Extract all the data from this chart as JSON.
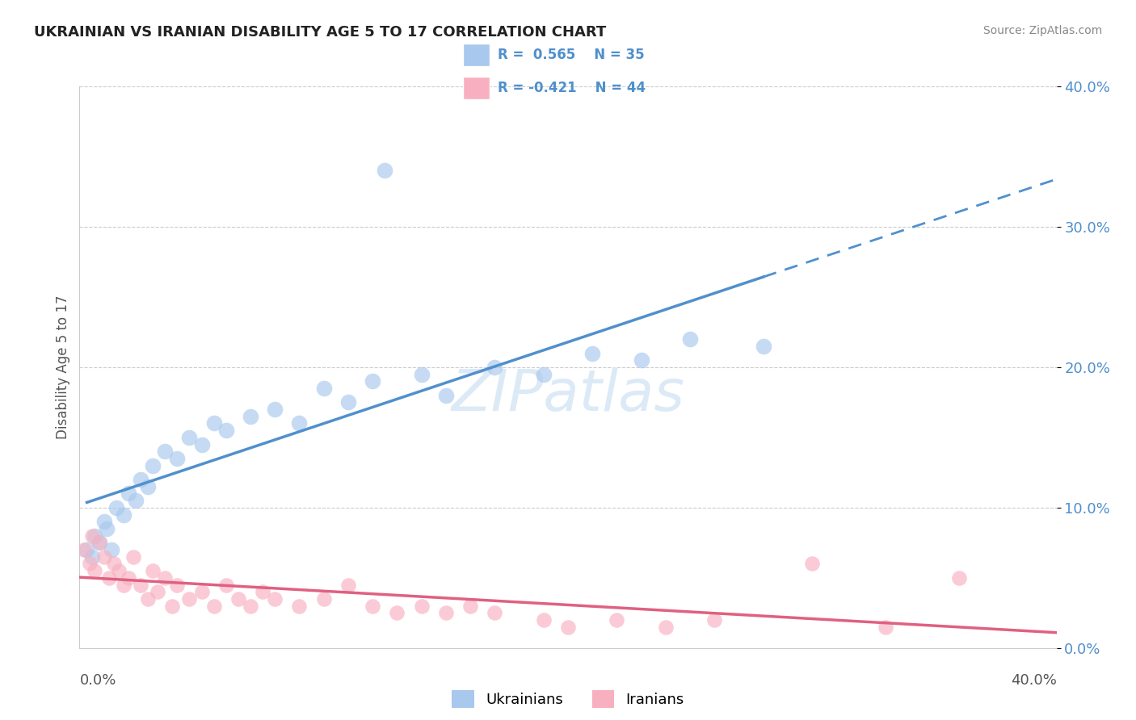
{
  "title": "UKRAINIAN VS IRANIAN DISABILITY AGE 5 TO 17 CORRELATION CHART",
  "source": "Source: ZipAtlas.com",
  "ylabel": "Disability Age 5 to 17",
  "ytick_values": [
    0,
    10,
    20,
    30,
    40
  ],
  "xlim": [
    0,
    40
  ],
  "ylim": [
    0,
    40
  ],
  "r_ukrainian": 0.565,
  "n_ukrainian": 35,
  "r_iranian": -0.421,
  "n_iranian": 44,
  "color_ukrainian": "#A8C8EE",
  "color_ukrainian_line": "#5090CC",
  "color_iranian": "#F8B0C0",
  "color_iranian_line": "#E06080",
  "background_color": "#FFFFFF",
  "grid_color": "#CCCCCC",
  "watermark": "ZIPatlas",
  "ukrainian_x": [
    0.3,
    0.5,
    0.6,
    0.8,
    1.0,
    1.1,
    1.3,
    1.5,
    1.8,
    2.0,
    2.3,
    2.5,
    2.8,
    3.0,
    3.5,
    4.0,
    4.5,
    5.0,
    5.5,
    6.0,
    7.0,
    8.0,
    9.0,
    10.0,
    11.0,
    12.0,
    14.0,
    15.0,
    17.0,
    19.0,
    21.0,
    23.0,
    25.0,
    28.0,
    12.5
  ],
  "ukrainian_y": [
    7.0,
    6.5,
    8.0,
    7.5,
    9.0,
    8.5,
    7.0,
    10.0,
    9.5,
    11.0,
    10.5,
    12.0,
    11.5,
    13.0,
    14.0,
    13.5,
    15.0,
    14.5,
    16.0,
    15.5,
    16.5,
    17.0,
    16.0,
    18.5,
    17.5,
    19.0,
    19.5,
    18.0,
    20.0,
    19.5,
    21.0,
    20.5,
    22.0,
    21.5,
    34.0
  ],
  "iranian_x": [
    0.2,
    0.4,
    0.5,
    0.6,
    0.8,
    1.0,
    1.2,
    1.4,
    1.6,
    1.8,
    2.0,
    2.2,
    2.5,
    2.8,
    3.0,
    3.2,
    3.5,
    3.8,
    4.0,
    4.5,
    5.0,
    5.5,
    6.0,
    6.5,
    7.0,
    7.5,
    8.0,
    9.0,
    10.0,
    11.0,
    12.0,
    13.0,
    14.0,
    15.0,
    16.0,
    17.0,
    19.0,
    20.0,
    22.0,
    24.0,
    26.0,
    30.0,
    33.0,
    36.0
  ],
  "iranian_y": [
    7.0,
    6.0,
    8.0,
    5.5,
    7.5,
    6.5,
    5.0,
    6.0,
    5.5,
    4.5,
    5.0,
    6.5,
    4.5,
    3.5,
    5.5,
    4.0,
    5.0,
    3.0,
    4.5,
    3.5,
    4.0,
    3.0,
    4.5,
    3.5,
    3.0,
    4.0,
    3.5,
    3.0,
    3.5,
    4.5,
    3.0,
    2.5,
    3.0,
    2.5,
    3.0,
    2.5,
    2.0,
    1.5,
    2.0,
    1.5,
    2.0,
    6.0,
    1.5,
    5.0
  ]
}
